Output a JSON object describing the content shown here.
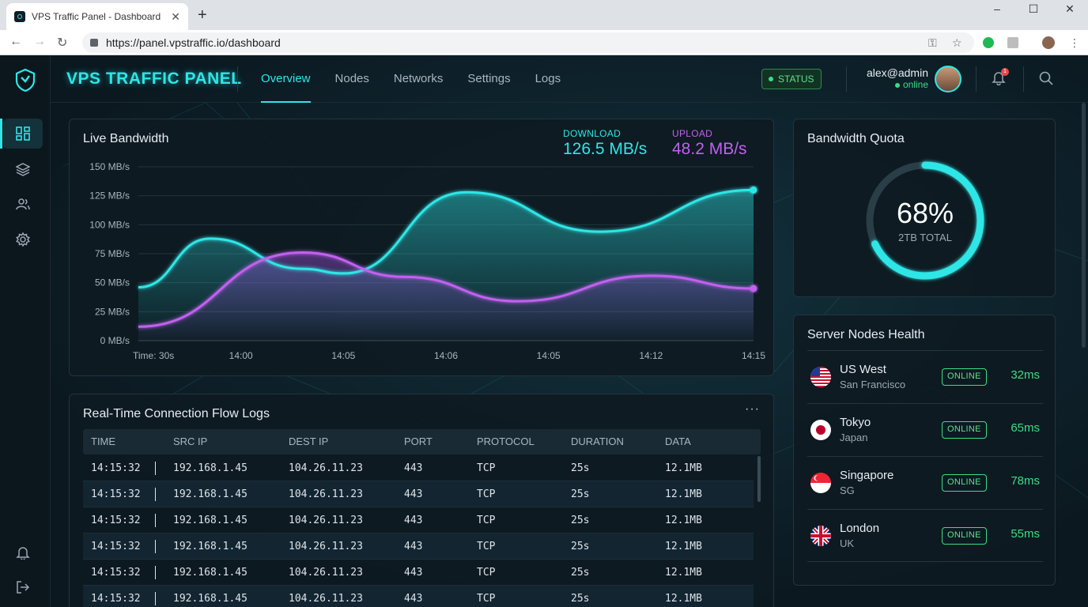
{
  "browser": {
    "tab_title": "VPS Traffic Panel - Dashboard",
    "url": "https://panel.vpstraffic.io/dashboard"
  },
  "app": {
    "brand": "VPS TRAFFIC PANEL",
    "nav": [
      "Overview",
      "Nodes",
      "Networks",
      "Settings",
      "Logs"
    ],
    "active_nav": "Overview",
    "status_label": "STATUS",
    "user": {
      "name": "alex@admin",
      "presence": "online"
    },
    "notification_count": "1"
  },
  "live_bandwidth": {
    "title": "Live Bandwidth",
    "download_label": "DOWNLOAD",
    "download_value": "126.5 MB/s",
    "upload_label": "UPLOAD",
    "upload_value": "48.2 MB/s",
    "colors": {
      "download": "#2ee6e6",
      "upload": "#c260f0"
    }
  },
  "chart_data": {
    "type": "area",
    "x": [
      "Time: 30s",
      "14:00",
      "14:05",
      "14:06",
      "14:05",
      "14:12",
      "14:15"
    ],
    "y_ticks": [
      "150 MB/s",
      "125 MB/s",
      "100 MB/s",
      "75 MB/s",
      "50 MB/s",
      "25 MB/s",
      "0 MB/s"
    ],
    "ylim": [
      0,
      150
    ],
    "grid": true,
    "series": [
      {
        "name": "DOWNLOAD",
        "color": "#2ee6e6",
        "points": [
          [
            0,
            46
          ],
          [
            0.7,
            88
          ],
          [
            1.6,
            62
          ],
          [
            2.0,
            58
          ],
          [
            3.2,
            128
          ],
          [
            4.5,
            94
          ],
          [
            6.0,
            130
          ]
        ]
      },
      {
        "name": "UPLOAD",
        "color": "#c260f0",
        "points": [
          [
            0,
            12
          ],
          [
            1.6,
            76
          ],
          [
            2.6,
            55
          ],
          [
            3.7,
            34
          ],
          [
            5.0,
            56
          ],
          [
            6.0,
            45
          ]
        ]
      }
    ]
  },
  "quota": {
    "title": "Bandwidth Quota",
    "percent": 68,
    "percent_label": "68%",
    "total_label": "2TB TOTAL"
  },
  "logs": {
    "title": "Real-Time Connection Flow Logs",
    "more": "···",
    "columns": [
      "TIME",
      "SRC IP",
      "DEST IP",
      "PORT",
      "PROTOCOL",
      "DURATION",
      "DATA"
    ],
    "rows": [
      [
        "14:15:32",
        "192.168.1.45",
        "104.26.11.23",
        "443",
        "TCP",
        "25s",
        "12.1MB"
      ],
      [
        "14:15:32",
        "192.168.1.45",
        "104.26.11.23",
        "443",
        "TCP",
        "25s",
        "12.1MB"
      ],
      [
        "14:15:32",
        "192.168.1.45",
        "104.26.11.23",
        "443",
        "TCP",
        "25s",
        "12.1MB"
      ],
      [
        "14:15:32",
        "192.168.1.45",
        "104.26.11.23",
        "443",
        "TCP",
        "25s",
        "12.1MB"
      ],
      [
        "14:15:32",
        "192.168.1.45",
        "104.26.11.23",
        "443",
        "TCP",
        "25s",
        "12.1MB"
      ],
      [
        "14:15:32",
        "192.168.1.45",
        "104.26.11.23",
        "443",
        "TCP",
        "25s",
        "12.1MB"
      ]
    ]
  },
  "nodes": {
    "title": "Server Nodes Health",
    "items": [
      {
        "name": "US West",
        "location": "San Francisco",
        "status": "ONLINE",
        "latency": "32ms",
        "flag": "us-flag-icon"
      },
      {
        "name": "Tokyo",
        "location": "Japan",
        "status": "ONLINE",
        "latency": "65ms",
        "flag": "japan-flag-icon"
      },
      {
        "name": "Singapore",
        "location": "SG",
        "status": "ONLINE",
        "latency": "78ms",
        "flag": "singapore-flag-icon"
      },
      {
        "name": "London",
        "location": "UK",
        "status": "ONLINE",
        "latency": "55ms",
        "flag": "uk-flag-icon"
      }
    ]
  }
}
